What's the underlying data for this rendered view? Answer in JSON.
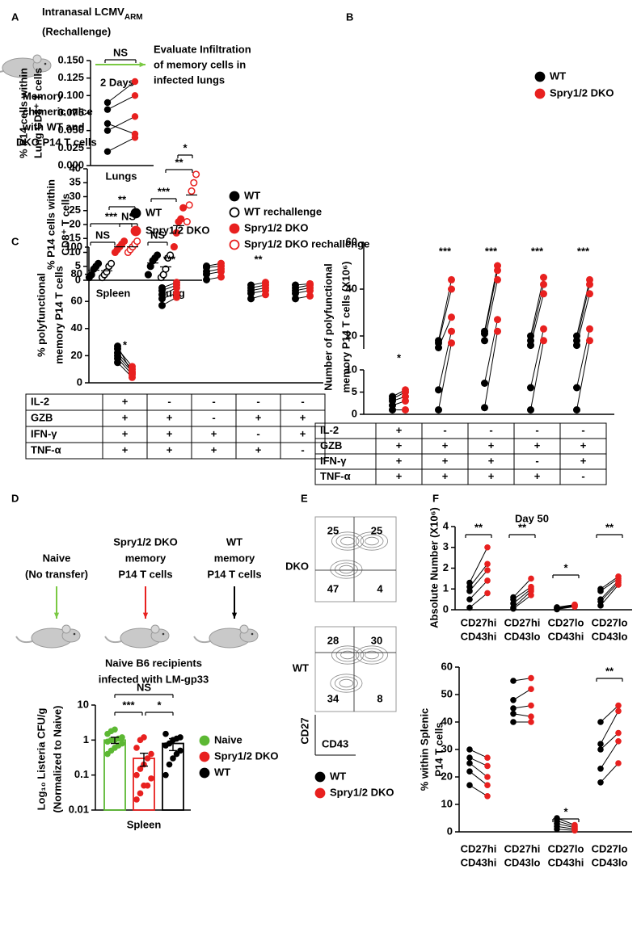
{
  "panels": [
    "A",
    "B",
    "C",
    "D",
    "E",
    "F"
  ],
  "schematic_a": {
    "title_lines": [
      "Intranasal LCMV",
      "(Rechallenge)"
    ],
    "title_sub": "ARM",
    "arrow_label": "2 Days",
    "outcome_lines": [
      "Evaluate Infiltration",
      "of memory cells in",
      "infected lungs"
    ],
    "mouse_lines": [
      "Memory",
      "chimeric mice",
      "with WT and",
      "DKO P14 T cells"
    ]
  },
  "schematic_d": {
    "groups": [
      [
        "Naive",
        "(No transfer)"
      ],
      [
        "Spry1/2 DKO",
        "memory",
        "P14 T cells"
      ],
      [
        "WT",
        "memory",
        "P14 T cells"
      ]
    ],
    "recipients": [
      "Naive B6 recipients",
      "infected with LM-gp33"
    ]
  },
  "flow_e": {
    "plots": [
      {
        "label": "DKO",
        "quadrants": [
          25,
          25,
          47,
          4
        ]
      },
      {
        "label": "WT",
        "quadrants": [
          28,
          30,
          34,
          8
        ]
      }
    ],
    "y_axis": "CD27",
    "x_axis": "CD43"
  },
  "tables": [
    {
      "rows": [
        {
          "label": "IL-2",
          "cells": [
            "+",
            "-",
            "-",
            "-",
            "-"
          ]
        },
        {
          "label": "GZB",
          "cells": [
            "+",
            "+",
            "-",
            "+",
            "+"
          ]
        },
        {
          "label": "IFN-γ",
          "cells": [
            "+",
            "+",
            "+",
            "-",
            "+"
          ]
        },
        {
          "label": "TNF-α",
          "cells": [
            "+",
            "+",
            "+",
            "+",
            "-"
          ]
        }
      ]
    },
    {
      "rows": [
        {
          "label": "IL-2",
          "cells": [
            "+",
            "-",
            "-",
            "-",
            "-"
          ]
        },
        {
          "label": "GZB",
          "cells": [
            "+",
            "+",
            "+",
            "+",
            "+"
          ]
        },
        {
          "label": "IFN-γ",
          "cells": [
            "+",
            "+",
            "+",
            "-",
            "+"
          ]
        },
        {
          "label": "TNF-α",
          "cells": [
            "+",
            "+",
            "+",
            "+",
            "-"
          ]
        }
      ]
    }
  ],
  "chart_data": [
    {
      "type": "dot",
      "y_label": [
        "% P14 cells within",
        "CD8⁺ T cells"
      ],
      "ylim": [
        0,
        40
      ],
      "yticks": [
        0,
        5,
        10,
        15,
        20,
        25,
        30,
        35,
        40
      ],
      "categories": [
        "Spleen",
        "Lung"
      ],
      "series": [
        {
          "name": "WT",
          "color": "#000000",
          "marker": "filled",
          "values": [
            [
              1,
              2,
              4,
              5,
              6
            ],
            [
              2,
              5,
              7,
              8,
              9
            ]
          ],
          "means": [
            3.6,
            6.2
          ]
        },
        {
          "name": "WT rechallenge",
          "color": "#000000",
          "marker": "open",
          "values": [
            [
              1,
              2,
              3,
              5,
              6
            ],
            [
              1,
              2,
              4,
              8,
              9
            ]
          ],
          "means": [
            3.4,
            4.8
          ]
        },
        {
          "name": "Spry1/2 DKO",
          "color": "#e8201f",
          "marker": "filled",
          "values": [
            [
              10,
              11,
              12,
              13,
              14
            ],
            [
              12,
              17,
              21,
              22,
              26
            ]
          ],
          "means": [
            12,
            19.6
          ]
        },
        {
          "name": "Spry1/2 DKO rechallenge",
          "color": "#e8201f",
          "marker": "open",
          "values": [
            [
              10,
              11,
              12,
              13,
              14
            ],
            [
              21,
              27,
              32,
              35,
              38
            ]
          ],
          "means": [
            12,
            30.6
          ]
        }
      ],
      "annotations": [
        "NS",
        "***",
        "NS",
        "**",
        "NS",
        "***",
        "**",
        "*"
      ]
    },
    {
      "type": "paired",
      "y_label": [
        "% P14 cells within",
        "Lung CD8⁺ T cells"
      ],
      "ylim": [
        0,
        0.15
      ],
      "yticks": [
        {
          "value": 0,
          "label": "0.000"
        },
        0.025,
        {
          "value": 0.05,
          "label": "0.050"
        },
        0.075,
        {
          "value": 0.1,
          "label": "0.100"
        },
        0.125,
        {
          "value": 0.15,
          "label": "0.150"
        }
      ],
      "categories": [
        "Lungs"
      ],
      "series": [
        {
          "name": "WT",
          "color": "#000000",
          "values": [
            [
              0.09,
              0.08,
              0.06,
              0.05,
              0.02
            ]
          ]
        },
        {
          "name": "Spry1/2 DKO",
          "color": "#e8201f",
          "values": [
            [
              0.12,
              0.1,
              0.045,
              0.07,
              0.04
            ]
          ]
        }
      ],
      "annotations": [
        "NS"
      ]
    },
    {
      "type": "paired",
      "y_label": [
        "% polyfunctional",
        "memory P14 T cells"
      ],
      "ylim": [
        0,
        100
      ],
      "yticks": [
        0,
        20,
        40,
        60,
        80,
        100
      ],
      "categories": [
        null,
        null,
        null,
        null,
        null
      ],
      "series": [
        {
          "name": "WT",
          "color": "#000000",
          "values": [
            [
              15,
              18,
              20,
              22,
              25,
              27
            ],
            [
              57,
              62,
              65,
              68,
              70
            ],
            [
              76,
              80,
              82,
              85,
              86
            ],
            [
              62,
              66,
              68,
              70,
              72
            ],
            [
              62,
              66,
              68,
              70,
              72
            ]
          ]
        },
        {
          "name": "Spry1/2 DKO",
          "color": "#e8201f",
          "values": [
            [
              4,
              6,
              8,
              10,
              12,
              7
            ],
            [
              63,
              66,
              70,
              72,
              74
            ],
            [
              78,
              82,
              84,
              86,
              88
            ],
            [
              65,
              68,
              70,
              72,
              74
            ],
            [
              64,
              68,
              70,
              72,
              73
            ]
          ]
        }
      ],
      "annotations": [
        "*",
        "***",
        "**"
      ]
    },
    {
      "type": "paired",
      "y_label": [
        "Number of polyfunctional",
        "memory P14 T cells (X10⁶)"
      ],
      "ylim": [
        0,
        10
      ],
      "yticks": [
        0,
        5,
        10
      ],
      "y_upper_lim": [
        10,
        60
      ],
      "y_upper_ticks": [
        20,
        40,
        60
      ],
      "categories": [
        null,
        null,
        null,
        null,
        null
      ],
      "series": [
        {
          "color": "#000000",
          "values": [
            [
              1,
              2,
              3,
              3.5,
              4
            ],
            [
              1,
              5.5,
              15,
              17,
              18
            ],
            [
              1.5,
              7,
              18,
              21,
              22
            ],
            [
              1,
              6,
              16,
              18,
              20
            ],
            [
              1,
              6,
              16,
              18,
              20
            ]
          ]
        },
        {
          "color": "#e8201f",
          "values": [
            [
              1,
              3,
              4,
              5,
              5.5
            ],
            [
              17,
              22,
              28,
              40,
              44
            ],
            [
              22,
              27,
              44,
              48,
              50
            ],
            [
              18,
              23,
              38,
              42,
              45
            ],
            [
              18,
              23,
              38,
              42,
              44
            ]
          ]
        }
      ],
      "annotations": [
        "*",
        "***",
        "***",
        "***",
        "***"
      ]
    },
    {
      "type": "bar",
      "log_scale": true,
      "y_label": [
        "Log₁₀ Listeria CFU/g",
        "(Normalized to Naive)"
      ],
      "x_label": "Spleen",
      "ylim": [
        0.01,
        10
      ],
      "yticks": [
        0.01,
        0.1,
        1,
        10
      ],
      "series": [
        {
          "name": "Naive",
          "color": "#5cb833",
          "value": 1,
          "error": 0.2,
          "points": [
            0.4,
            0.5,
            0.6,
            0.7,
            0.8,
            0.9,
            1,
            1,
            1.1,
            1.2,
            1.5,
            1.8,
            2
          ]
        },
        {
          "name": "Spry1/2 DKO",
          "color": "#e8201f",
          "value": 0.3,
          "error": 0.12,
          "points": [
            0.02,
            0.03,
            0.05,
            0.05,
            0.08,
            0.1,
            0.15,
            0.2,
            0.3,
            0.4,
            0.6,
            1,
            1.2
          ]
        },
        {
          "name": "WT",
          "color": "#000000",
          "value": 0.8,
          "error": 0.3,
          "points": [
            0.1,
            0.2,
            0.3,
            0.4,
            0.5,
            0.7,
            0.8,
            1,
            1.1,
            1.2,
            1.5
          ]
        }
      ],
      "annotations": [
        "NS",
        "***",
        "*"
      ]
    },
    {
      "type": "paired",
      "title": "Day 50",
      "y_label": [
        "Absolute Number (X10⁶)"
      ],
      "ylim": [
        0,
        4
      ],
      "yticks": [
        0,
        1,
        2,
        3,
        4
      ],
      "categories": [
        [
          "CD27hi",
          "CD43hi"
        ],
        [
          "CD27hi",
          "CD43lo"
        ],
        [
          "CD27lo",
          "CD43hi"
        ],
        [
          "CD27lo",
          "CD43lo"
        ]
      ],
      "category_colors": [
        "#000000",
        "#e8201f",
        "#8a5cd0",
        "#4caf2a"
      ],
      "series": [
        {
          "name": "WT",
          "color": "#000000",
          "values": [
            [
              0.1,
              0.5,
              0.9,
              1.1,
              1.3
            ],
            [
              0.05,
              0.1,
              0.3,
              0.5,
              0.6
            ],
            [
              0.02,
              0.05,
              0.08,
              0.1,
              0.12
            ],
            [
              0.2,
              0.4,
              0.5,
              0.9,
              1
            ]
          ]
        },
        {
          "name": "Spry1/2 DKO",
          "color": "#e8201f",
          "values": [
            [
              0.8,
              1.4,
              1.9,
              2.2,
              3
            ],
            [
              0.7,
              0.9,
              1,
              1.1,
              1.5
            ],
            [
              0.15,
              0.18,
              0.2,
              0.22,
              0.25
            ],
            [
              1.2,
              1.3,
              1.4,
              1.5,
              1.6
            ]
          ]
        }
      ],
      "annotations": [
        "**",
        "**",
        "*",
        "**"
      ]
    },
    {
      "type": "paired",
      "y_label": [
        "% within Splenic",
        "P14 T cells"
      ],
      "ylim": [
        0,
        60
      ],
      "yticks": [
        0,
        10,
        20,
        30,
        40,
        50,
        60
      ],
      "categories": [
        [
          "CD27hi",
          "CD43hi"
        ],
        [
          "CD27hi",
          "CD43lo"
        ],
        [
          "CD27lo",
          "CD43hi"
        ],
        [
          "CD27lo",
          "CD43lo"
        ]
      ],
      "category_colors": [
        "#000000",
        "#e8201f",
        "#8a5cd0",
        "#4caf2a"
      ],
      "series": [
        {
          "color": "#000000",
          "values": [
            [
              17,
              22,
              25,
              27,
              30
            ],
            [
              40,
              43,
              45,
              48,
              55
            ],
            [
              1,
              2,
              3,
              4,
              5
            ],
            [
              18,
              23,
              30,
              32,
              40
            ]
          ]
        },
        {
          "color": "#e8201f",
          "values": [
            [
              13,
              17,
              20,
              24,
              27
            ],
            [
              40,
              42,
              46,
              52,
              56
            ],
            [
              0.5,
              1,
              1.5,
              2,
              2.5
            ],
            [
              25,
              33,
              36,
              44,
              46
            ]
          ]
        }
      ],
      "annotations": [
        "*",
        "**"
      ]
    }
  ]
}
